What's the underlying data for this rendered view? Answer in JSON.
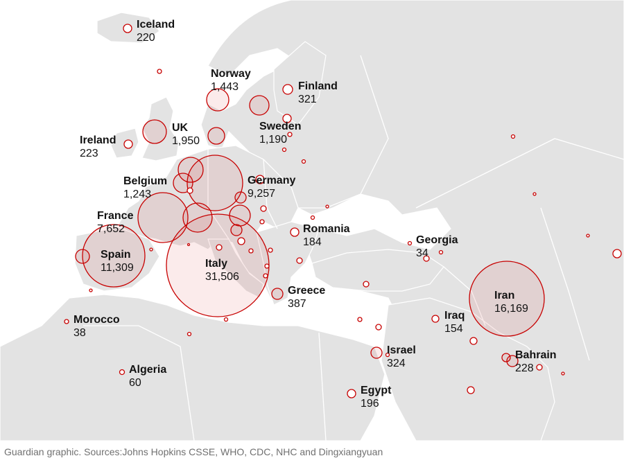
{
  "source": "Guardian graphic. Sources:Johns Hopkins CSSE, WHO, CDC, NHC and Dingxiangyuan",
  "colors": {
    "bubble_stroke": "#c70000",
    "land": "#e3e3e3",
    "sea": "#ffffff",
    "text": "#121212"
  },
  "countries": [
    {
      "id": "iceland",
      "name": "Iceland",
      "value": "220"
    },
    {
      "id": "norway",
      "name": "Norway",
      "value": "1,443"
    },
    {
      "id": "finland",
      "name": "Finland",
      "value": "321"
    },
    {
      "id": "uk",
      "name": "UK",
      "value": "1,950"
    },
    {
      "id": "sweden",
      "name": "Sweden",
      "value": "1,190"
    },
    {
      "id": "ireland",
      "name": "Ireland",
      "value": "223"
    },
    {
      "id": "belgium",
      "name": "Belgium",
      "value": "1,243"
    },
    {
      "id": "germany",
      "name": "Germany",
      "value": "9,257"
    },
    {
      "id": "france",
      "name": "France",
      "value": "7,652"
    },
    {
      "id": "romania",
      "name": "Romania",
      "value": "184"
    },
    {
      "id": "spain",
      "name": "Spain",
      "value": "11,309"
    },
    {
      "id": "italy",
      "name": "Italy",
      "value": "31,506"
    },
    {
      "id": "georgia",
      "name": "Georgia",
      "value": "34"
    },
    {
      "id": "iran",
      "name": "Iran",
      "value": "16,169"
    },
    {
      "id": "greece",
      "name": "Greece",
      "value": "387"
    },
    {
      "id": "morocco",
      "name": "Morocco",
      "value": "38"
    },
    {
      "id": "iraq",
      "name": "Iraq",
      "value": "154"
    },
    {
      "id": "israel",
      "name": "Israel",
      "value": "324"
    },
    {
      "id": "bahrain",
      "name": "Bahrain",
      "value": "228"
    },
    {
      "id": "algeria",
      "name": "Algeria",
      "value": "60"
    },
    {
      "id": "egypt",
      "name": "Egypt",
      "value": "196"
    }
  ]
}
